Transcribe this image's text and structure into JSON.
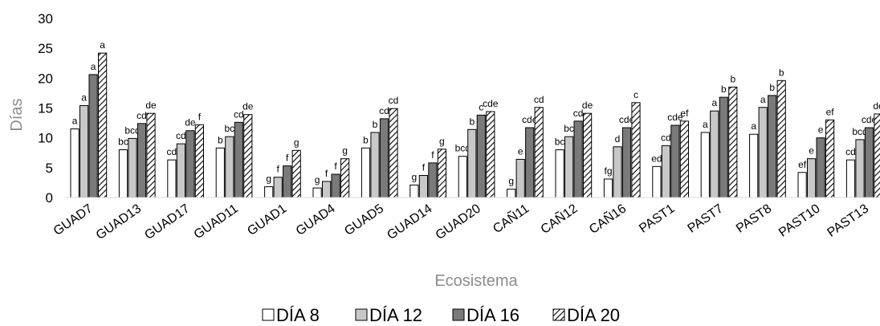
{
  "chart_data": {
    "type": "bar",
    "xlabel": "Ecosistema",
    "ylabel": "Días",
    "ylim": [
      0,
      30
    ],
    "yticks": [
      0,
      5,
      10,
      15,
      20,
      25,
      30
    ],
    "grid": false,
    "legend_position": "bottom",
    "categories": [
      "GUAD7",
      "GUAD13",
      "GUAD17",
      "GUAD11",
      "GUAD1",
      "GUAD4",
      "GUAD5",
      "GUAD14",
      "GUAD20",
      "CAÑ11",
      "CAÑ12",
      "CAÑ16",
      "PAST1",
      "PAST7",
      "PAST8",
      "PAST10",
      "PAST13"
    ],
    "series": [
      {
        "name": "DÍA 8",
        "fill": "#ffffff",
        "pattern": "none",
        "values": [
          11.5,
          8.0,
          6.3,
          8.3,
          1.8,
          1.6,
          8.3,
          2.1,
          6.9,
          1.4,
          8.0,
          3.1,
          5.2,
          10.9,
          10.6,
          4.2,
          6.3
        ],
        "labels": [
          "a",
          "bc",
          "cd",
          "b",
          "g",
          "g",
          "b",
          "g",
          "bcd",
          "g",
          "bc",
          "fg",
          "ed",
          "a",
          "a",
          "ef",
          "cd"
        ]
      },
      {
        "name": "DÍA 12",
        "fill": "#c8c8c8",
        "pattern": "none",
        "values": [
          15.4,
          9.9,
          9.0,
          10.2,
          3.4,
          2.7,
          10.9,
          3.7,
          11.4,
          6.4,
          10.2,
          8.5,
          8.7,
          14.5,
          15.1,
          6.5,
          9.7
        ],
        "labels": [
          "a",
          "bcd",
          "cd",
          "bc",
          "f",
          "f",
          "b",
          "f",
          "b",
          "e",
          "bc",
          "d",
          "cd",
          "a",
          "a",
          "e",
          "bcd"
        ]
      },
      {
        "name": "DÍA 16",
        "fill": "#7a7a7a",
        "pattern": "none",
        "values": [
          20.6,
          12.4,
          11.2,
          12.6,
          5.3,
          3.9,
          13.2,
          5.8,
          13.8,
          11.7,
          12.8,
          11.7,
          12.1,
          16.8,
          17.1,
          10.0,
          11.7
        ],
        "labels": [
          "a",
          "cd",
          "de",
          "cd",
          "f",
          "f",
          "cd",
          "f",
          "c",
          "cde",
          "cd",
          "cde",
          "cde",
          "b",
          "b",
          "e",
          "cde"
        ]
      },
      {
        "name": "DÍA 20",
        "fill": "#ffffff",
        "pattern": "diagonal",
        "values": [
          24.2,
          14.1,
          12.2,
          13.9,
          7.9,
          6.5,
          14.9,
          8.1,
          14.4,
          15.1,
          14.1,
          15.9,
          12.8,
          18.5,
          19.6,
          13.0,
          14.0
        ],
        "labels": [
          "a",
          "de",
          "f",
          "de",
          "g",
          "g",
          "cd",
          "g",
          "cde",
          "cd",
          "de",
          "c",
          "ef",
          "b",
          "b",
          "ef",
          "de"
        ]
      }
    ]
  }
}
